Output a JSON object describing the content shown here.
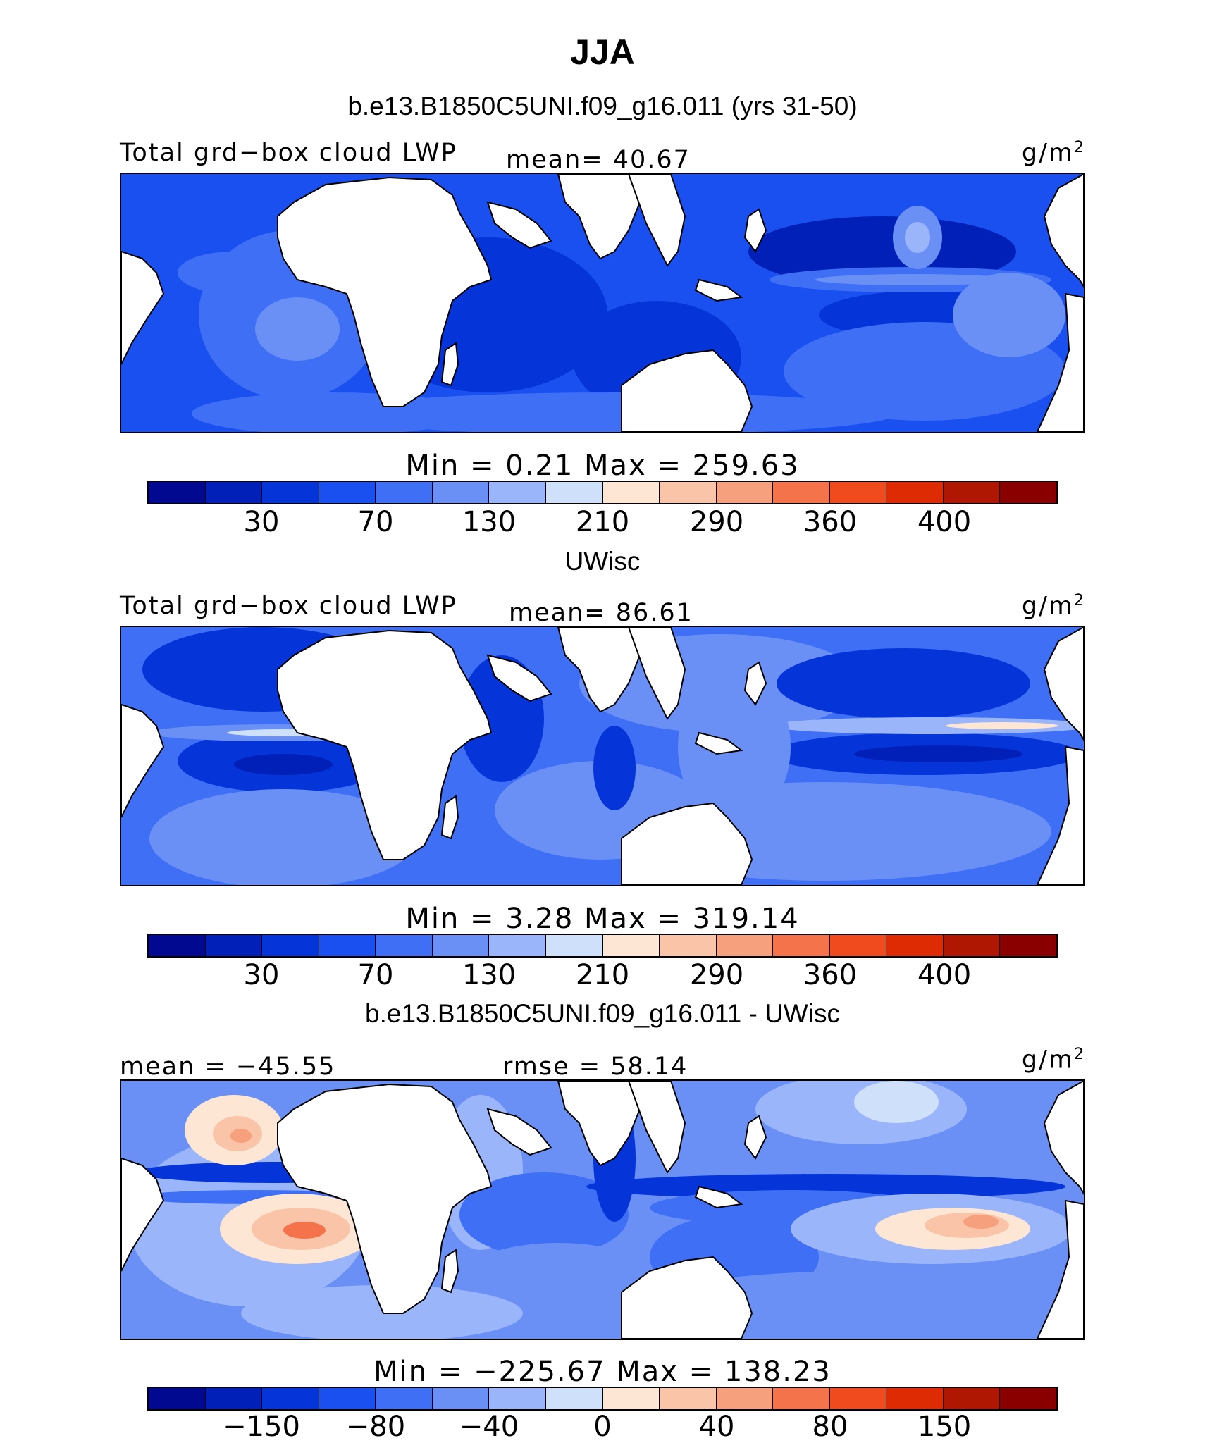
{
  "title": "JJA",
  "colors": {
    "scale": [
      "#00098f",
      "#0020b7",
      "#0534d9",
      "#1b50f0",
      "#3e6ff5",
      "#6a90f6",
      "#9ab5fa",
      "#cfe0fb",
      "#fde6d4",
      "#f9c4a8",
      "#f7a07d",
      "#f5734b",
      "#f04a1f",
      "#de2b04",
      "#b01702",
      "#8a0000"
    ],
    "land": "#ffffff",
    "coast": "#000000"
  },
  "panels": [
    {
      "subtitle": "b.e13.B1850C5UNI.f09_g16.011 (yrs 31-50)",
      "left_label": "Total grd−box cloud LWP",
      "center_label": "mean=  40.67",
      "units": "g/m",
      "units_exp": "2",
      "minmax": "Min =    0.21  Max =  259.63",
      "ticks": [
        "30",
        "70",
        "130",
        "210",
        "290",
        "360",
        "400"
      ]
    },
    {
      "subtitle": "UWisc",
      "left_label": "Total grd−box cloud LWP",
      "center_label": "mean=  86.61",
      "units": "g/m",
      "units_exp": "2",
      "minmax": "Min =    3.28  Max =  319.14",
      "ticks": [
        "30",
        "70",
        "130",
        "210",
        "290",
        "360",
        "400"
      ]
    },
    {
      "subtitle": "b.e13.B1850C5UNI.f09_g16.011 - UWisc",
      "left_label": "mean = −45.55",
      "center_label": "rmse =  58.14",
      "units": "g/m",
      "units_exp": "2",
      "minmax": "Min = −225.67  Max =  138.23",
      "ticks": [
        "−150",
        "−80",
        "−40",
        "0",
        "40",
        "80",
        "150"
      ]
    }
  ]
}
